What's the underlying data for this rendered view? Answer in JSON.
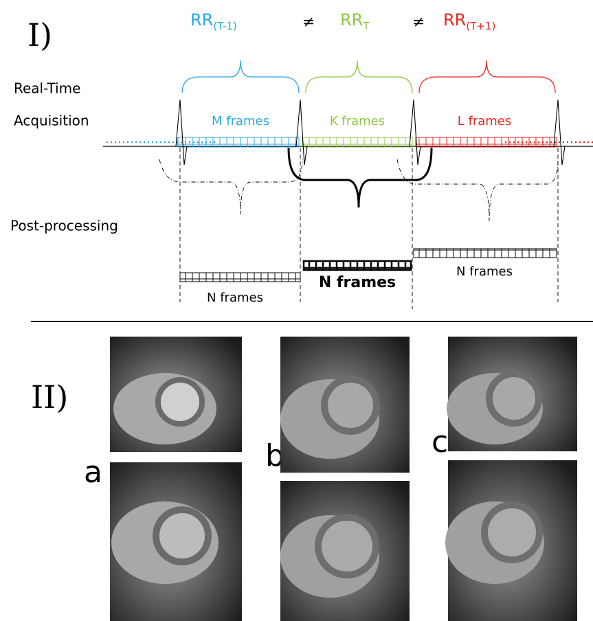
{
  "part1": {
    "label": "I)",
    "intervals": [
      {
        "name": {
          "base": "RR",
          "sub": "(T-1)"
        },
        "frames": "M frames",
        "output": "N frames"
      },
      {
        "name": {
          "base": "RR",
          "sub": "T"
        },
        "frames": "K frames",
        "output": "N frames"
      },
      {
        "name": {
          "base": "RR",
          "sub": "(T+1)"
        },
        "frames": "L  frames",
        "output": "N frames"
      }
    ],
    "separators": [
      "≠",
      "≠"
    ],
    "row_labels": {
      "acquisition": [
        "Real-Time",
        "Acquisition"
      ],
      "post": "Post-processing"
    }
  },
  "part2": {
    "label": "II)",
    "panels": [
      "a",
      "b",
      "c"
    ]
  }
}
